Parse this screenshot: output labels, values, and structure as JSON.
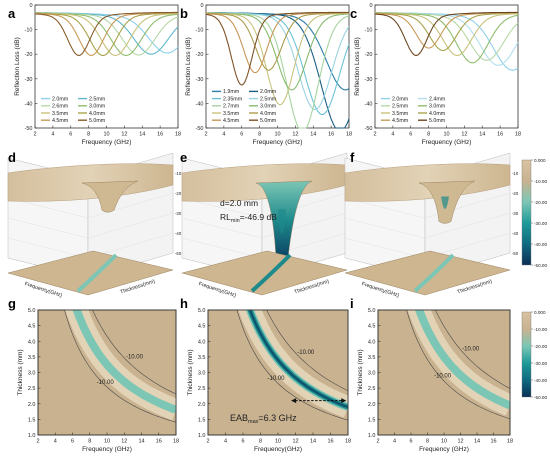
{
  "figure": {
    "panels": {
      "a": {
        "label": "a"
      },
      "b": {
        "label": "b"
      },
      "c": {
        "label": "c"
      },
      "d": {
        "label": "d"
      },
      "e": {
        "label": "e"
      },
      "f": {
        "label": "f"
      },
      "g": {
        "label": "g"
      },
      "h": {
        "label": "h"
      },
      "i": {
        "label": "i"
      }
    },
    "colors": {
      "surface": "#c9b28f",
      "surface_light": "#e6d6bc",
      "band_mid": "#7cc6b5",
      "band_deep": "#1e8a8c",
      "band_core": "#0b4f6c",
      "contour": "#4a4a4a",
      "background": "#ffffff"
    }
  },
  "chart_data": [
    {
      "id": "a",
      "type": "line",
      "xlabel": "Frequency (GHz)",
      "ylabel": "Reflection Loss (dB)",
      "xlim": [
        2,
        18
      ],
      "ylim": [
        -50,
        0
      ],
      "xticks": [
        2,
        4,
        6,
        8,
        10,
        12,
        14,
        16,
        18
      ],
      "yticks": [
        0,
        -10,
        -20,
        -30,
        -40,
        -50
      ],
      "legend_position": "bottom",
      "series": [
        {
          "name": "2.0mm",
          "color": "#8fd0ea",
          "f0": 16.8,
          "depth": 15
        },
        {
          "name": "2.5mm",
          "color": "#5fb7cc",
          "f0": 15.0,
          "depth": 15.5
        },
        {
          "name": "2.6mm",
          "color": "#b6d9a6",
          "f0": 13.6,
          "depth": 15.8
        },
        {
          "name": "3.0mm",
          "color": "#8fbd6e",
          "f0": 12.2,
          "depth": 16
        },
        {
          "name": "3.5mm",
          "color": "#c8c27c",
          "f0": 11.0,
          "depth": 16
        },
        {
          "name": "4.0mm",
          "color": "#a8a44c",
          "f0": 9.6,
          "depth": 16
        },
        {
          "name": "4.5mm",
          "color": "#c89b58",
          "f0": 8.3,
          "depth": 16
        },
        {
          "name": "5.0mm",
          "color": "#8a5e2e",
          "f0": 6.9,
          "depth": 16
        }
      ]
    },
    {
      "id": "b",
      "type": "line",
      "xlabel": "Frequency (GHz)",
      "ylabel": "Reflection Loss (dB)",
      "xlim": [
        2,
        18
      ],
      "ylim": [
        -50,
        0
      ],
      "xticks": [
        2,
        4,
        6,
        8,
        10,
        12,
        14,
        16,
        18
      ],
      "yticks": [
        0,
        -10,
        -20,
        -30,
        -40,
        -50
      ],
      "legend_position": "bottom",
      "series": [
        {
          "name": "1.9mm",
          "color": "#2b7fa8",
          "f0": 17.6,
          "depth": 30
        },
        {
          "name": "2.0mm",
          "color": "#1a5e85",
          "f0": 17.0,
          "depth": 46.9
        },
        {
          "name": "2.35mm",
          "color": "#6cc2d6",
          "f0": 15.0,
          "depth": 40
        },
        {
          "name": "2.5mm",
          "color": "#9ad3e0",
          "f0": 14.2,
          "depth": 38
        },
        {
          "name": "2.7mm",
          "color": "#a7d4a0",
          "f0": 12.8,
          "depth": 47
        },
        {
          "name": "3.0mm",
          "color": "#88bb70",
          "f0": 11.6,
          "depth": 30
        },
        {
          "name": "3.5mm",
          "color": "#c9c37e",
          "f0": 10.3,
          "depth": 36
        },
        {
          "name": "4.0mm",
          "color": "#ab9c4d",
          "f0": 9.0,
          "depth": 22
        },
        {
          "name": "4.5mm",
          "color": "#c79656",
          "f0": 7.5,
          "depth": 23
        },
        {
          "name": "5.0mm",
          "color": "#7f5328",
          "f0": 6.0,
          "depth": 28
        }
      ]
    },
    {
      "id": "c",
      "type": "line",
      "xlabel": "Frequency (GHz)",
      "ylabel": "Reflection Loss (dB)",
      "xlim": [
        2,
        18
      ],
      "ylim": [
        -50,
        0
      ],
      "xticks": [
        2,
        4,
        6,
        8,
        10,
        12,
        14,
        16,
        18
      ],
      "yticks": [
        0,
        -10,
        -20,
        -30,
        -40,
        -50
      ],
      "legend_position": "bottom",
      "series": [
        {
          "name": "2.0mm",
          "color": "#8fd0ea",
          "f0": 17.4,
          "depth": 22
        },
        {
          "name": "2.4mm",
          "color": "#b2def0",
          "f0": 15.8,
          "depth": 20
        },
        {
          "name": "2.5mm",
          "color": "#b6d9a6",
          "f0": 14.5,
          "depth": 18
        },
        {
          "name": "3.0mm",
          "color": "#8fbd6e",
          "f0": 12.9,
          "depth": 19
        },
        {
          "name": "3.5mm",
          "color": "#c8c27c",
          "f0": 11.2,
          "depth": 16
        },
        {
          "name": "4.0mm",
          "color": "#a8a44c",
          "f0": 9.6,
          "depth": 14
        },
        {
          "name": "4.5mm",
          "color": "#c89b58",
          "f0": 8.0,
          "depth": 13
        },
        {
          "name": "5.0mm",
          "color": "#6e4722",
          "f0": 6.6,
          "depth": 16
        }
      ]
    },
    {
      "id": "d",
      "type": "surface3d",
      "xlabel": "Frequency(GHz)",
      "ylabel": "Thickness(mm)",
      "zlabel": "Reflection Loss(dB)",
      "zticks": [
        -10,
        -20,
        -30,
        -40,
        -50
      ],
      "min_rl": -17
    },
    {
      "id": "e",
      "type": "surface3d",
      "xlabel": "Frequency(GHz)",
      "ylabel": "Thickness(mm)",
      "zlabel": "Reflection Loss(dB)",
      "zticks": [
        -10,
        -20,
        -30,
        -40,
        -50
      ],
      "annotation_d": "d=2.0 mm",
      "annotation_rl_prefix": "RL",
      "annotation_rl_sub": "min",
      "annotation_rl_value": "=-46.9 dB",
      "min_rl": -46.9
    },
    {
      "id": "f",
      "type": "surface3d",
      "xlabel": "Frequency(GHz)",
      "ylabel": "Thickness(mm)",
      "zlabel": "Reflection Loss(dB)",
      "zticks": [
        -10,
        -20,
        -30,
        -40,
        -50
      ],
      "min_rl": -24
    },
    {
      "id": "colorbar",
      "type": "colorbar",
      "ticks": [
        "0.000",
        "-10.00",
        "-20.00",
        "-30.00",
        "-40.00",
        "-50.00"
      ]
    },
    {
      "id": "g",
      "type": "heatmap",
      "xlabel": "Frequency (GHz)",
      "ylabel": "Thickness (mm)",
      "xlim": [
        2,
        18
      ],
      "ylim": [
        1.0,
        5.0
      ],
      "xticks": [
        2,
        4,
        6,
        8,
        10,
        12,
        14,
        16,
        18
      ],
      "yticks": [
        "1.0",
        "1.5",
        "2.0",
        "2.5",
        "3.0",
        "3.5",
        "4.0",
        "4.5",
        "5.0"
      ],
      "contour_labels": [
        "-10.00",
        "-10.00"
      ],
      "k": 32.5,
      "strength": "mid"
    },
    {
      "id": "h",
      "type": "heatmap",
      "xlabel": "Frequency(GHz)",
      "ylabel": "Thickness (mm)",
      "xlim": [
        2,
        18
      ],
      "ylim": [
        1.0,
        5.0
      ],
      "xticks": [
        2,
        4,
        6,
        8,
        10,
        12,
        14,
        16,
        18
      ],
      "yticks": [
        "1.0",
        "1.5",
        "2.0",
        "2.5",
        "3.0",
        "3.5",
        "4.0",
        "4.5",
        "5.0"
      ],
      "contour_labels": [
        "-10.00",
        "-10.00"
      ],
      "eab_prefix": "EAB",
      "eab_sub": "max",
      "eab_value": "=6.3 GHz",
      "eab_range": [
        11.5,
        17.8
      ],
      "eab_thickness": 2.1,
      "k": 34,
      "strength": "deep"
    },
    {
      "id": "i",
      "type": "heatmap",
      "xlabel": "Frequency (GHz)",
      "ylabel": "Thickness (mm)",
      "xlim": [
        2,
        18
      ],
      "ylim": [
        1.0,
        5.0
      ],
      "xticks": [
        2,
        4,
        6,
        8,
        10,
        12,
        14,
        16,
        18
      ],
      "yticks": [
        "1.0",
        "1.5",
        "2.0",
        "2.5",
        "3.0",
        "3.5",
        "4.0",
        "4.5",
        "5.0"
      ],
      "contour_labels": [
        "-10.00",
        "-10.00"
      ],
      "k": 35,
      "strength": "mid"
    },
    {
      "id": "colorbar2",
      "type": "colorbar",
      "ticks": [
        "0.000",
        "-10.00",
        "-20.00",
        "-30.00",
        "-40.00",
        "-50.00"
      ]
    }
  ]
}
